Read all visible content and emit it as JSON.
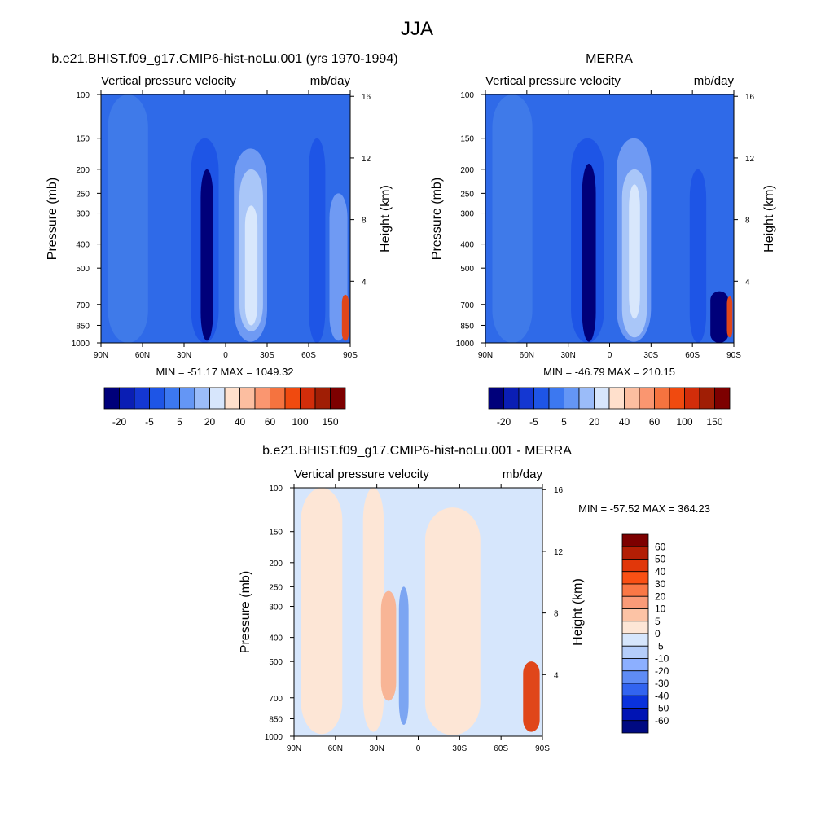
{
  "figure": {
    "title": "JJA"
  },
  "chart_data": [
    {
      "type": "heatmap",
      "title": "b.e21.BHIST.f09_g17.CMIP6-hist-noLu.001 (yrs 1970-1994)",
      "left_subtitle": "Vertical pressure velocity",
      "right_subtitle": "mb/day",
      "xlabel": "",
      "ylabel": "Pressure (mb)",
      "ylabel_right": "Height (km)",
      "x_ticks": [
        "90N",
        "60N",
        "30N",
        "0",
        "30S",
        "60S",
        "90S"
      ],
      "y_ticks": [
        "100",
        "150",
        "200",
        "250",
        "300",
        "400",
        "500",
        "700",
        "850",
        "1000"
      ],
      "y_ticks_right": [
        "16",
        "12",
        "8",
        "4"
      ],
      "stats": "MIN = -51.17  MAX = 1049.32",
      "colorbar": {
        "orientation": "horizontal",
        "labels": [
          "-20",
          "-5",
          "5",
          "20",
          "40",
          "60",
          "100",
          "150"
        ],
        "colors": [
          "#00007a",
          "#0a1eb4",
          "#1437d2",
          "#1e55e6",
          "#3c78f0",
          "#6496f5",
          "#9bbcf9",
          "#d7e6fc",
          "#ffe0cc",
          "#fcbea0",
          "#fa9670",
          "#f5733f",
          "#f04a0f",
          "#d22d0a",
          "#a01e05",
          "#7d0000"
        ]
      },
      "fields": [
        {
          "lat": [
            -85,
            -56
          ],
          "p": [
            100,
            1000
          ],
          "level": "blue_mid"
        },
        {
          "lat": [
            -25,
            -5
          ],
          "p": [
            150,
            1000
          ],
          "level": "blue_dark"
        },
        {
          "lat": [
            -18,
            -9
          ],
          "p": [
            200,
            980
          ],
          "level": "navy"
        },
        {
          "lat": [
            6,
            30
          ],
          "p": [
            165,
            990
          ],
          "level": "lavender"
        },
        {
          "lat": [
            10,
            27
          ],
          "p": [
            200,
            900
          ],
          "level": "pale"
        },
        {
          "lat": [
            14,
            23
          ],
          "p": [
            280,
            850
          ],
          "level": "whiteblue"
        },
        {
          "lat": [
            60,
            72
          ],
          "p": [
            150,
            1000
          ],
          "level": "blue_dark"
        },
        {
          "lat": [
            75,
            88
          ],
          "p": [
            250,
            980
          ],
          "level": "lavender"
        },
        {
          "lat": [
            84,
            89
          ],
          "p": [
            640,
            980
          ],
          "level": "red"
        }
      ]
    },
    {
      "type": "heatmap",
      "title": "MERRA",
      "left_subtitle": "Vertical pressure velocity",
      "right_subtitle": "mb/day",
      "xlabel": "",
      "ylabel": "Pressure (mb)",
      "ylabel_right": "Height (km)",
      "x_ticks": [
        "90N",
        "60N",
        "30N",
        "0",
        "30S",
        "60S",
        "90S"
      ],
      "y_ticks": [
        "100",
        "150",
        "200",
        "250",
        "300",
        "400",
        "500",
        "700",
        "850",
        "1000"
      ],
      "y_ticks_right": [
        "16",
        "12",
        "8",
        "4"
      ],
      "stats": "MIN = -46.79  MAX = 210.15",
      "colorbar": {
        "orientation": "horizontal",
        "labels": [
          "-20",
          "-5",
          "5",
          "20",
          "40",
          "60",
          "100",
          "150"
        ],
        "colors": [
          "#00007a",
          "#0a1eb4",
          "#1437d2",
          "#1e55e6",
          "#3c78f0",
          "#6496f5",
          "#9bbcf9",
          "#d7e6fc",
          "#ffe0cc",
          "#fcbea0",
          "#fa9670",
          "#f5733f",
          "#f04a0f",
          "#d22d0a",
          "#a01e05",
          "#7d0000"
        ]
      },
      "fields": [
        {
          "lat": [
            -85,
            -56
          ],
          "p": [
            100,
            1000
          ],
          "level": "blue_mid"
        },
        {
          "lat": [
            -28,
            -4
          ],
          "p": [
            150,
            1000
          ],
          "level": "blue_dark"
        },
        {
          "lat": [
            -20,
            -10
          ],
          "p": [
            190,
            990
          ],
          "level": "navy"
        },
        {
          "lat": [
            5,
            30
          ],
          "p": [
            150,
            990
          ],
          "level": "lavender"
        },
        {
          "lat": [
            9,
            27
          ],
          "p": [
            200,
            950
          ],
          "level": "pale"
        },
        {
          "lat": [
            14,
            22
          ],
          "p": [
            230,
            800
          ],
          "level": "whiteblue"
        },
        {
          "lat": [
            58,
            70
          ],
          "p": [
            200,
            1000
          ],
          "level": "blue_dark"
        },
        {
          "lat": [
            73,
            86
          ],
          "p": [
            620,
            1000
          ],
          "level": "navy"
        },
        {
          "lat": [
            85,
            89
          ],
          "p": [
            650,
            950
          ],
          "level": "red"
        }
      ]
    },
    {
      "type": "heatmap",
      "title": "b.e21.BHIST.f09_g17.CMIP6-hist-noLu.001 - MERRA",
      "left_subtitle": "Vertical pressure velocity",
      "right_subtitle": "mb/day",
      "xlabel": "",
      "ylabel": "Pressure (mb)",
      "ylabel_right": "Height (km)",
      "x_ticks": [
        "90N",
        "60N",
        "30N",
        "0",
        "30S",
        "60S",
        "90S"
      ],
      "y_ticks": [
        "100",
        "150",
        "200",
        "250",
        "300",
        "400",
        "500",
        "700",
        "850",
        "1000"
      ],
      "y_ticks_right": [
        "16",
        "12",
        "8",
        "4"
      ],
      "stats": "MIN = -57.52  MAX = 364.23",
      "colorbar": {
        "orientation": "vertical",
        "labels": [
          "60",
          "50",
          "40",
          "30",
          "20",
          "10",
          "5",
          "0",
          "-5",
          "-10",
          "-20",
          "-30",
          "-40",
          "-50",
          "-60"
        ],
        "colors": [
          "#7d0000",
          "#b31e05",
          "#e1370a",
          "#fa5014",
          "#fa7846",
          "#fa9b78",
          "#fcc3a5",
          "#fde6d6",
          "#d6e6fc",
          "#b4cdfa",
          "#8cafff",
          "#5f8cf5",
          "#3264f0",
          "#0a32dc",
          "#0014b4",
          "#000a82"
        ]
      },
      "fields": [
        {
          "lat": [
            -90,
            90
          ],
          "p": [
            100,
            1000
          ],
          "level": "light_blue"
        },
        {
          "lat": [
            -85,
            -55
          ],
          "p": [
            100,
            980
          ],
          "level": "light_peach"
        },
        {
          "lat": [
            -40,
            -25
          ],
          "p": [
            100,
            960
          ],
          "level": "light_peach"
        },
        {
          "lat": [
            5,
            45
          ],
          "p": [
            120,
            990
          ],
          "level": "light_peach"
        },
        {
          "lat": [
            -27,
            -16
          ],
          "p": [
            260,
            720
          ],
          "level": "peach"
        },
        {
          "lat": [
            -14,
            -7
          ],
          "p": [
            250,
            900
          ],
          "level": "mid_blue"
        },
        {
          "lat": [
            60,
            75
          ],
          "p": [
            100,
            1000
          ],
          "level": "light_blue"
        },
        {
          "lat": [
            76,
            88
          ],
          "p": [
            500,
            960
          ],
          "level": "red"
        }
      ]
    }
  ]
}
